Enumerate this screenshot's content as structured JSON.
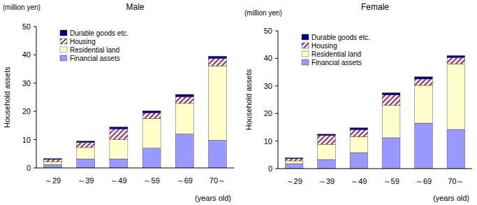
{
  "chart_data": [
    {
      "type": "bar",
      "stacked": true,
      "title": "Male",
      "ylabel": "Household assets",
      "xlabel": "(years old)",
      "annotations": [
        "(million yen)"
      ],
      "categories": [
        "～29",
        "～39",
        "～49",
        "～59",
        "～69",
        "70～"
      ],
      "series": [
        {
          "name": "Financial assets",
          "color": "#9999ff",
          "values": [
            1.2,
            3.2,
            3.2,
            7.0,
            12.0,
            9.8
          ]
        },
        {
          "name": "Residential land",
          "color": "#ffffcc",
          "values": [
            1.0,
            4.0,
            6.8,
            10.5,
            10.8,
            26.3
          ]
        },
        {
          "name": "Housing",
          "color": "#993366",
          "values": [
            0.8,
            1.8,
            3.8,
            2.0,
            2.4,
            2.6
          ]
        },
        {
          "name": "Durable goods etc.",
          "color": "#000080",
          "values": [
            0.3,
            0.5,
            0.7,
            0.7,
            0.8,
            0.8
          ]
        }
      ],
      "ylim": [
        0,
        50
      ],
      "yticks": [
        0,
        10,
        20,
        30,
        40,
        50
      ],
      "grid": false,
      "legend": "upper left"
    },
    {
      "type": "bar",
      "stacked": true,
      "title": "Female",
      "ylabel": "Household assets",
      "xlabel": "(years old)",
      "annotations": [
        "(million yen)"
      ],
      "categories": [
        "～29",
        "～39",
        "～49",
        "～59",
        "～69",
        "70～"
      ],
      "series": [
        {
          "name": "Financial assets",
          "color": "#9999ff",
          "values": [
            1.8,
            3.3,
            5.8,
            11.2,
            16.5,
            14.2
          ]
        },
        {
          "name": "Residential land",
          "color": "#ffffcc",
          "values": [
            1.0,
            5.5,
            5.8,
            11.8,
            13.7,
            23.8
          ]
        },
        {
          "name": "Housing",
          "color": "#993366",
          "values": [
            0.8,
            3.2,
            2.5,
            3.7,
            2.3,
            2.3
          ]
        },
        {
          "name": "Durable goods etc.",
          "color": "#000080",
          "values": [
            0.3,
            0.5,
            0.7,
            0.8,
            0.8,
            0.7
          ]
        }
      ],
      "ylim": [
        0,
        50
      ],
      "yticks": [
        0,
        10,
        20,
        30,
        40,
        50
      ],
      "grid": false,
      "legend": "upper left"
    }
  ]
}
